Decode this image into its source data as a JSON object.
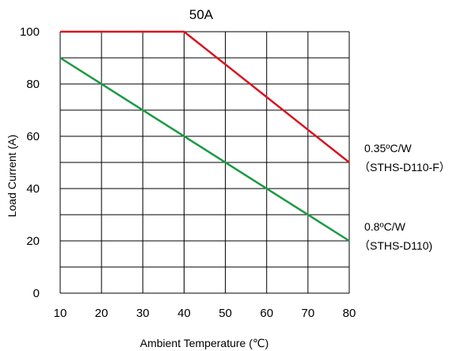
{
  "chart_data": {
    "type": "line",
    "title": "50A",
    "xlabel": "Ambient Temperature (℃)",
    "ylabel": "Load Current (A)",
    "xlim": [
      10,
      80
    ],
    "ylim": [
      0,
      100
    ],
    "x_ticks": [
      "10",
      "20",
      "30",
      "40",
      "50",
      "60",
      "70",
      "80"
    ],
    "y_ticks": [
      "0",
      "20",
      "40",
      "60",
      "80",
      "100"
    ],
    "grid": true,
    "series": [
      {
        "label_lines": [
          "0.35ºC/W",
          "（STHS-D110-F）"
        ],
        "color": "#d9141e",
        "x": [
          10,
          40,
          80
        ],
        "y": [
          100,
          100,
          50
        ]
      },
      {
        "label_lines": [
          "0.8ºC/W",
          "（STHS-D110)"
        ],
        "color": "#1a9a44",
        "x": [
          10,
          80
        ],
        "y": [
          90,
          20
        ]
      }
    ]
  }
}
